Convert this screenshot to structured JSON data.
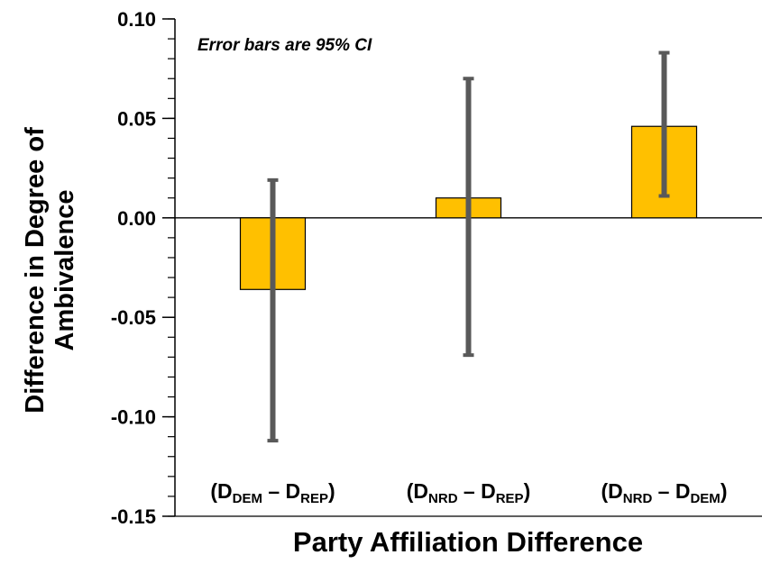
{
  "chart_data": {
    "type": "bar",
    "title": "",
    "xlabel": "Party Affiliation Difference",
    "ylabel_lines": [
      "Difference in Degree of",
      "Ambivalence"
    ],
    "annotation": "Error bars are 95% CI",
    "ylim": [
      -0.15,
      0.1
    ],
    "yticks": [
      {
        "value": 0.1,
        "label": "0.10"
      },
      {
        "value": 0.05,
        "label": "0.05"
      },
      {
        "value": 0.0,
        "label": "0.00"
      },
      {
        "value": -0.05,
        "label": "-0.05"
      },
      {
        "value": -0.1,
        "label": "-0.10"
      },
      {
        "value": -0.15,
        "label": "-0.15"
      }
    ],
    "minor_tick_step": 0.01,
    "grid": false,
    "categories": [
      {
        "open": "(D",
        "sub1": "DEM",
        "mid": " – D",
        "sub2": "REP",
        "close": ")"
      },
      {
        "open": "(D",
        "sub1": "NRD",
        "mid": " – D",
        "sub2": "REP",
        "close": ")"
      },
      {
        "open": "(D",
        "sub1": "NRD",
        "mid": " – D",
        "sub2": "DEM",
        "close": ")"
      }
    ],
    "values": [
      -0.036,
      0.01,
      0.046
    ],
    "error_bars": [
      {
        "low": -0.112,
        "high": 0.019
      },
      {
        "low": -0.069,
        "high": 0.07
      },
      {
        "low": 0.011,
        "high": 0.083
      }
    ],
    "bar_color": "#FFC000",
    "bar_edge_color": "#000000",
    "error_bar_color": "#595959"
  }
}
